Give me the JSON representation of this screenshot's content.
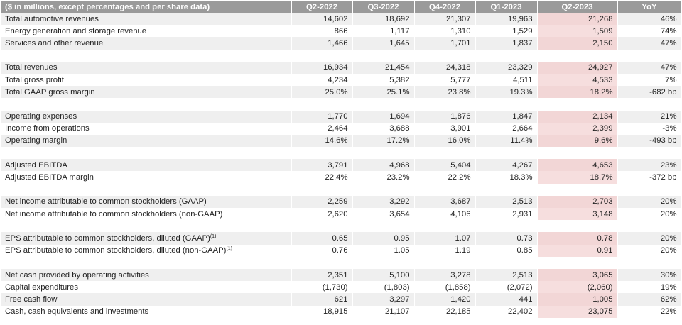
{
  "table": {
    "header": [
      "($ in millions, except percentages and per share data)",
      "Q2-2022",
      "Q3-2022",
      "Q4-2022",
      "Q1-2023",
      "Q2-2023",
      "YoY"
    ],
    "groups": [
      [
        {
          "label": "Total automotive revenues",
          "cells": [
            "14,602",
            "18,692",
            "21,307",
            "19,963",
            "21,268",
            "46%"
          ]
        },
        {
          "label": "Energy generation and storage revenue",
          "cells": [
            "866",
            "1,117",
            "1,310",
            "1,529",
            "1,509",
            "74%"
          ]
        },
        {
          "label": "Services and other revenue",
          "cells": [
            "1,466",
            "1,645",
            "1,701",
            "1,837",
            "2,150",
            "47%"
          ]
        }
      ],
      [
        {
          "label": "Total revenues",
          "cells": [
            "16,934",
            "21,454",
            "24,318",
            "23,329",
            "24,927",
            "47%"
          ]
        },
        {
          "label": "Total gross profit",
          "cells": [
            "4,234",
            "5,382",
            "5,777",
            "4,511",
            "4,533",
            "7%"
          ]
        },
        {
          "label": "Total GAAP gross margin",
          "cells": [
            "25.0%",
            "25.1%",
            "23.8%",
            "19.3%",
            "18.2%",
            "-682 bp"
          ]
        }
      ],
      [
        {
          "label": "Operating expenses",
          "cells": [
            "1,770",
            "1,694",
            "1,876",
            "1,847",
            "2,134",
            "21%"
          ]
        },
        {
          "label": "Income from operations",
          "cells": [
            "2,464",
            "3,688",
            "3,901",
            "2,664",
            "2,399",
            "-3%"
          ]
        },
        {
          "label": "Operating margin",
          "cells": [
            "14.6%",
            "17.2%",
            "16.0%",
            "11.4%",
            "9.6%",
            "-493 bp"
          ]
        }
      ],
      [
        {
          "label": "Adjusted EBITDA",
          "cells": [
            "3,791",
            "4,968",
            "5,404",
            "4,267",
            "4,653",
            "23%"
          ]
        },
        {
          "label": "Adjusted EBITDA margin",
          "cells": [
            "22.4%",
            "23.2%",
            "22.2%",
            "18.3%",
            "18.7%",
            "-372 bp"
          ]
        }
      ],
      [
        {
          "label": "Net income attributable to common stockholders (GAAP)",
          "cells": [
            "2,259",
            "3,292",
            "3,687",
            "2,513",
            "2,703",
            "20%"
          ]
        },
        {
          "label": "Net income attributable to common stockholders (non-GAAP)",
          "cells": [
            "2,620",
            "3,654",
            "4,106",
            "2,931",
            "3,148",
            "20%"
          ]
        }
      ],
      [
        {
          "label": "EPS attributable to common stockholders, diluted (GAAP)",
          "note": "(1)",
          "cells": [
            "0.65",
            "0.95",
            "1.07",
            "0.73",
            "0.78",
            "20%"
          ]
        },
        {
          "label": "EPS attributable to common stockholders, diluted (non-GAAP)",
          "note": "(1)",
          "cells": [
            "0.76",
            "1.05",
            "1.19",
            "0.85",
            "0.91",
            "20%"
          ]
        }
      ],
      [
        {
          "label": "Net cash provided by operating activities",
          "cells": [
            "2,351",
            "5,100",
            "3,278",
            "2,513",
            "3,065",
            "30%"
          ]
        },
        {
          "label": "Capital expenditures",
          "cells": [
            "(1,730)",
            "(1,803)",
            "(1,858)",
            "(2,072)",
            "(2,060)",
            "19%"
          ]
        },
        {
          "label": "Free cash flow",
          "cells": [
            "621",
            "3,297",
            "1,420",
            "441",
            "1,005",
            "62%"
          ]
        },
        {
          "label": "Cash, cash equivalents and investments",
          "cells": [
            "18,915",
            "21,107",
            "22,185",
            "22,402",
            "23,075",
            "22%"
          ]
        }
      ]
    ]
  }
}
